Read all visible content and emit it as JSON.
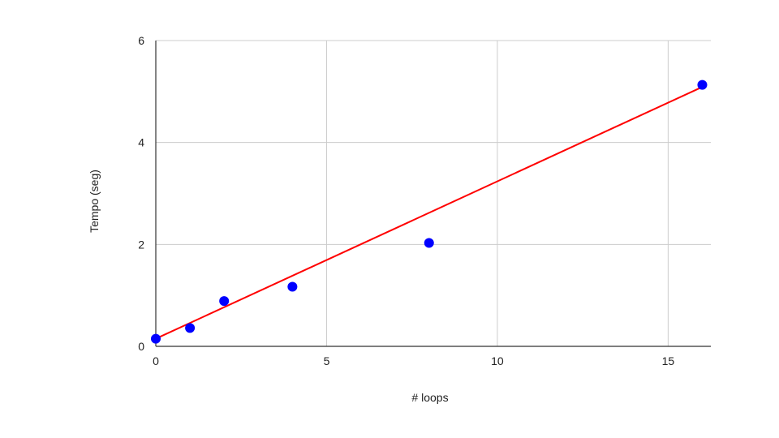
{
  "chart_data": {
    "type": "scatter",
    "title": "",
    "xlabel": "# loops",
    "ylabel": "Tempo (seg)",
    "xlim": [
      0,
      16.25
    ],
    "ylim": [
      0,
      6
    ],
    "x_ticks": [
      0,
      5,
      10,
      15
    ],
    "y_ticks": [
      0,
      2,
      4,
      6
    ],
    "x_tick_labels": [
      "0",
      "5",
      "10",
      "15"
    ],
    "y_tick_labels": [
      "0",
      "2",
      "4",
      "6"
    ],
    "grid": true,
    "series": [
      {
        "type": "scatter",
        "color": "#0000ff",
        "points": [
          {
            "x": 0,
            "y": 0.15
          },
          {
            "x": 1,
            "y": 0.36
          },
          {
            "x": 2,
            "y": 0.89
          },
          {
            "x": 4,
            "y": 1.17
          },
          {
            "x": 8,
            "y": 2.03
          },
          {
            "x": 16,
            "y": 5.13
          }
        ]
      },
      {
        "type": "trendline",
        "color": "#ff0000",
        "points": [
          {
            "x": 0,
            "y": 0.15
          },
          {
            "x": 16,
            "y": 5.09
          }
        ]
      }
    ]
  }
}
